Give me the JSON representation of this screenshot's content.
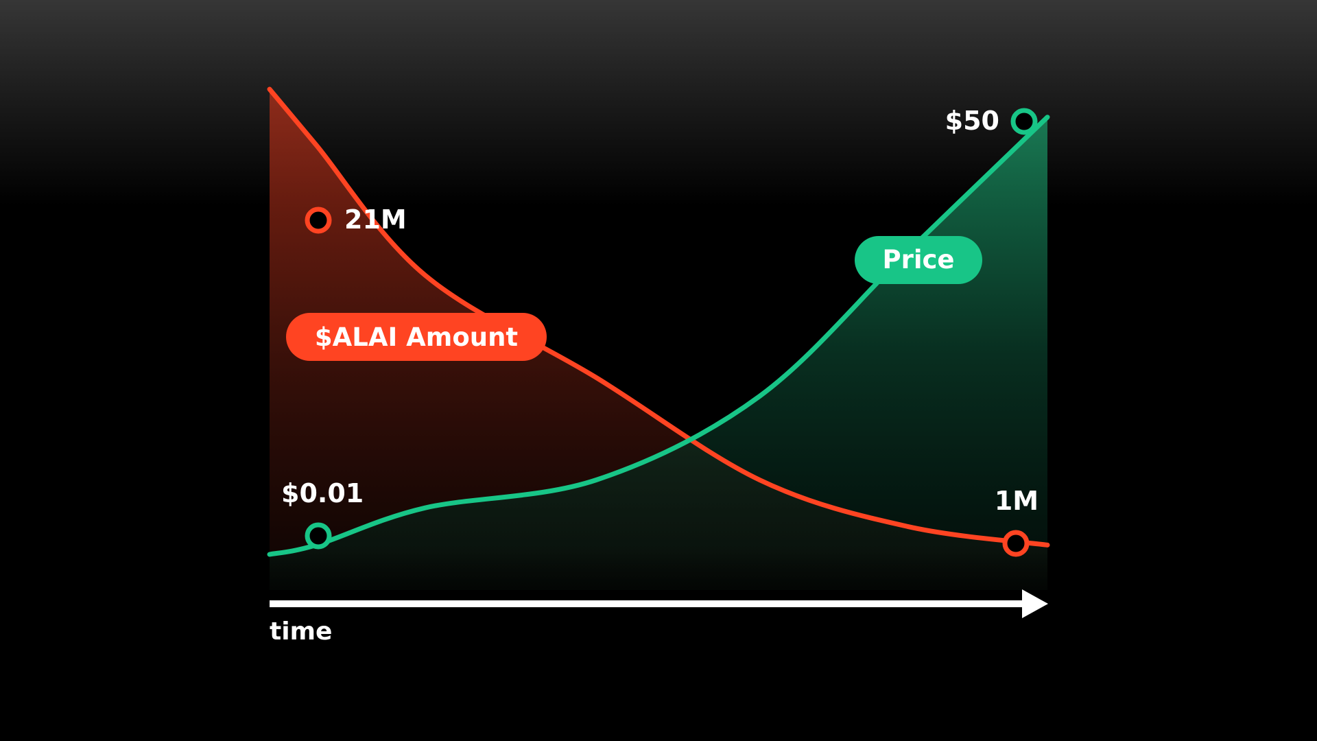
{
  "chart_data": {
    "type": "area",
    "title": "",
    "xlabel": "time",
    "ylabel": "",
    "axis": {
      "x_arrow": true,
      "grid": false
    },
    "colors": {
      "amount": "#ff4422",
      "price": "#18c587",
      "axis": "#ffffff",
      "marker_fill": "#000000"
    },
    "series": [
      {
        "name": "$ALAI Amount",
        "color": "#ff4422",
        "start_label": "21M",
        "end_label": "1M",
        "values": [
          100,
          88,
          60,
          38,
          16,
          6,
          2
        ]
      },
      {
        "name": "Price",
        "color": "#18c587",
        "start_label": "$0.01",
        "end_label": "$50",
        "values": [
          0,
          2,
          10,
          16,
          34,
          65,
          94
        ]
      }
    ],
    "x": [
      0,
      0.06,
      0.2,
      0.42,
      0.63,
      0.82,
      1.0
    ],
    "ylim": [
      0,
      100
    ]
  }
}
